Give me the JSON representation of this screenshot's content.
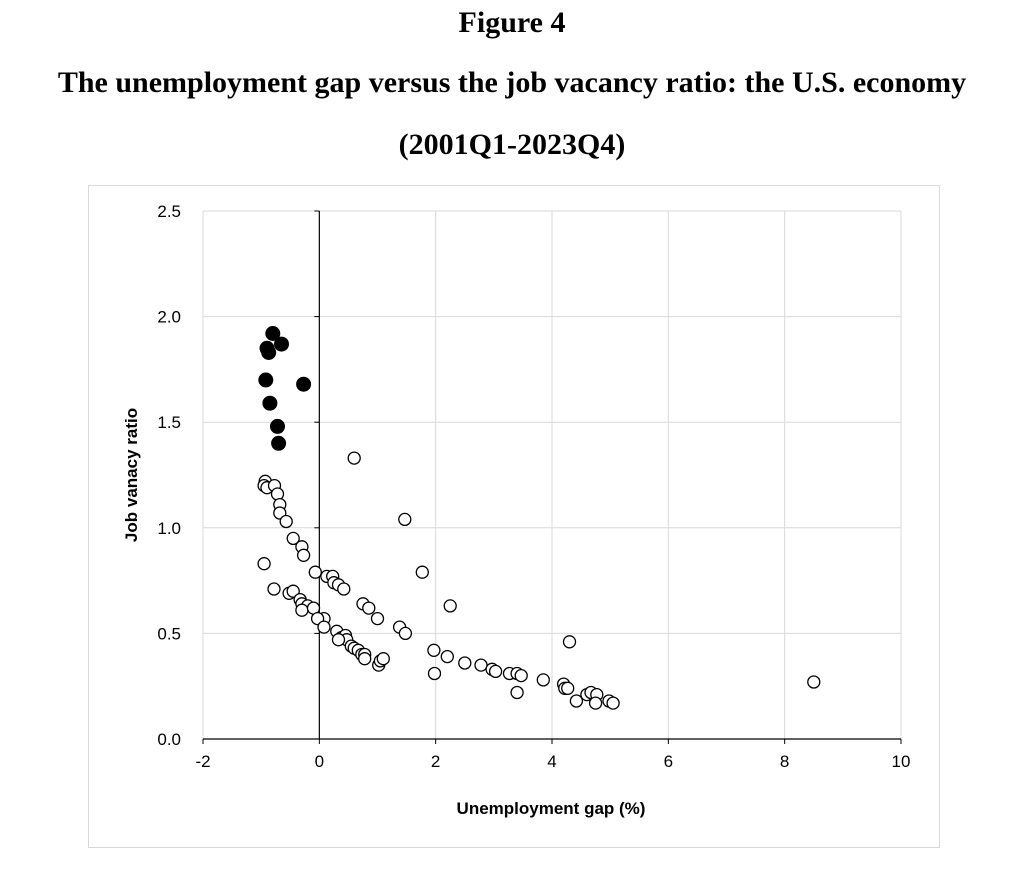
{
  "figure": {
    "label": "Figure 4",
    "title": "The unemployment gap versus the job vacancy ratio: the U.S. economy",
    "subtitle": "(2001Q1-2023Q4)"
  },
  "chart_data": {
    "type": "scatter",
    "xlabel": "Unemployment gap (%)",
    "ylabel": "Job vanacy ratio",
    "xlim": [
      -2,
      10
    ],
    "ylim": [
      0,
      2.5
    ],
    "xticks": [
      "-2",
      "0",
      "2",
      "4",
      "6",
      "8",
      "10"
    ],
    "yticks": [
      "0.0",
      "0.5",
      "1.0",
      "1.5",
      "2.0",
      "2.5"
    ],
    "grid": true,
    "legend": "none",
    "colors": {
      "grid": "#d9d9d9",
      "axis": "#000000",
      "marker": "#000000"
    },
    "series": [
      {
        "marker": "filled-circle",
        "points": [
          [
            -0.8,
            1.92
          ],
          [
            -0.65,
            1.87
          ],
          [
            -0.9,
            1.85
          ],
          [
            -0.87,
            1.83
          ],
          [
            -0.92,
            1.7
          ],
          [
            -0.27,
            1.68
          ],
          [
            -0.85,
            1.59
          ],
          [
            -0.72,
            1.48
          ],
          [
            -0.7,
            1.4
          ]
        ]
      },
      {
        "marker": "open-circle",
        "points": [
          [
            -0.93,
            1.22
          ],
          [
            -0.95,
            1.2
          ],
          [
            -0.9,
            1.19
          ],
          [
            -0.77,
            1.2
          ],
          [
            -0.72,
            1.16
          ],
          [
            -0.68,
            1.11
          ],
          [
            -0.68,
            1.07
          ],
          [
            -0.57,
            1.03
          ],
          [
            -0.45,
            0.95
          ],
          [
            -0.3,
            0.91
          ],
          [
            -0.27,
            0.87
          ],
          [
            -0.95,
            0.83
          ],
          [
            -0.07,
            0.79
          ],
          [
            0.13,
            0.77
          ],
          [
            0.23,
            0.77
          ],
          [
            0.25,
            0.74
          ],
          [
            0.33,
            0.73
          ],
          [
            0.42,
            0.71
          ],
          [
            -0.78,
            0.71
          ],
          [
            -0.52,
            0.69
          ],
          [
            -0.45,
            0.7
          ],
          [
            -0.33,
            0.66
          ],
          [
            -0.3,
            0.64
          ],
          [
            -0.2,
            0.63
          ],
          [
            -0.3,
            0.61
          ],
          [
            -0.1,
            0.62
          ],
          [
            0.08,
            0.57
          ],
          [
            -0.03,
            0.57
          ],
          [
            0.08,
            0.53
          ],
          [
            0.3,
            0.51
          ],
          [
            0.38,
            0.48
          ],
          [
            0.45,
            0.49
          ],
          [
            0.47,
            0.47
          ],
          [
            0.33,
            0.47
          ],
          [
            0.55,
            0.44
          ],
          [
            0.6,
            0.43
          ],
          [
            0.67,
            0.42
          ],
          [
            0.73,
            0.4
          ],
          [
            0.78,
            0.4
          ],
          [
            0.78,
            0.38
          ],
          [
            1.02,
            0.35
          ],
          [
            1.05,
            0.37
          ],
          [
            1.1,
            0.38
          ],
          [
            0.6,
            1.33
          ],
          [
            1.47,
            1.04
          ],
          [
            1.77,
            0.79
          ],
          [
            2.25,
            0.63
          ],
          [
            0.75,
            0.64
          ],
          [
            0.85,
            0.62
          ],
          [
            1.0,
            0.57
          ],
          [
            1.38,
            0.53
          ],
          [
            1.48,
            0.5
          ],
          [
            1.97,
            0.42
          ],
          [
            2.2,
            0.39
          ],
          [
            2.5,
            0.36
          ],
          [
            2.78,
            0.35
          ],
          [
            2.97,
            0.33
          ],
          [
            3.03,
            0.32
          ],
          [
            3.27,
            0.31
          ],
          [
            3.4,
            0.31
          ],
          [
            3.47,
            0.3
          ],
          [
            1.98,
            0.31
          ],
          [
            3.4,
            0.22
          ],
          [
            3.85,
            0.28
          ],
          [
            4.3,
            0.46
          ],
          [
            4.2,
            0.26
          ],
          [
            4.22,
            0.24
          ],
          [
            4.27,
            0.24
          ],
          [
            4.42,
            0.18
          ],
          [
            4.6,
            0.21
          ],
          [
            4.67,
            0.22
          ],
          [
            4.77,
            0.21
          ],
          [
            4.75,
            0.17
          ],
          [
            4.98,
            0.18
          ],
          [
            5.05,
            0.17
          ],
          [
            8.5,
            0.27
          ]
        ]
      }
    ]
  }
}
